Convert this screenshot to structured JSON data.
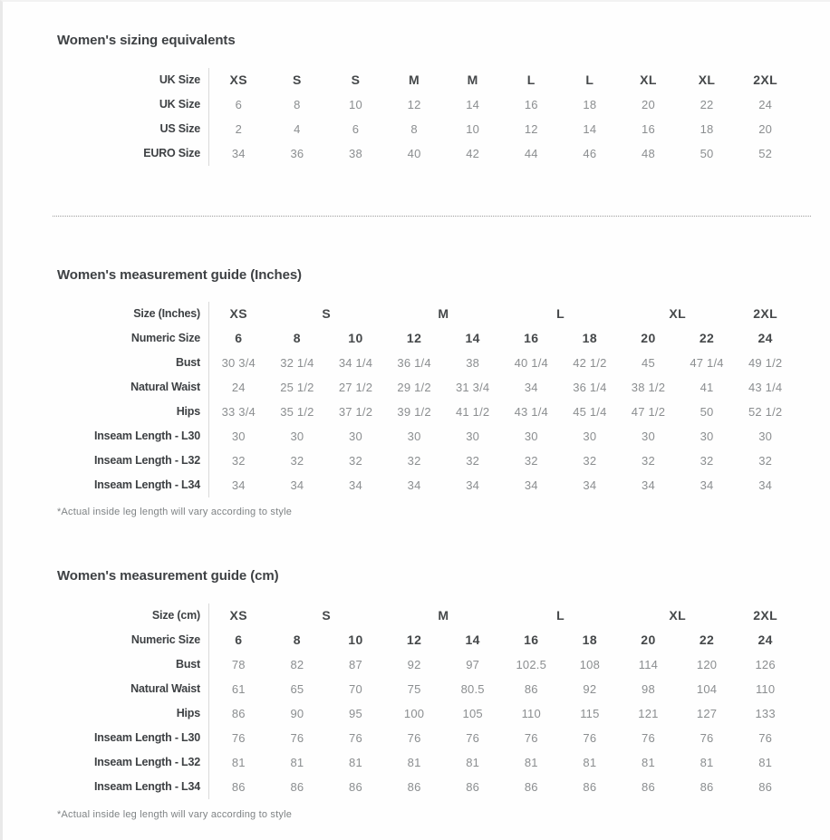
{
  "colors": {
    "label_dark": "#3e4144",
    "value_gray": "#8b8e90",
    "divider_gray": "#d9d9d9",
    "background": "#fefefe"
  },
  "tables": [
    {
      "id": "sizing-equivalents",
      "title": "Women's sizing equivalents",
      "header_row": {
        "label": "UK Size",
        "cells": [
          {
            "text": "XS",
            "span": 1
          },
          {
            "text": "S",
            "span": 1
          },
          {
            "text": "S",
            "span": 1
          },
          {
            "text": "M",
            "span": 1
          },
          {
            "text": "M",
            "span": 1
          },
          {
            "text": "L",
            "span": 1
          },
          {
            "text": "L",
            "span": 1
          },
          {
            "text": "XL",
            "span": 1
          },
          {
            "text": "XL",
            "span": 1
          },
          {
            "text": "2XL",
            "span": 1
          }
        ]
      },
      "rows": [
        {
          "label": "UK Size",
          "bold": false,
          "values": [
            "6",
            "8",
            "10",
            "12",
            "14",
            "16",
            "18",
            "20",
            "22",
            "24"
          ]
        },
        {
          "label": "US Size",
          "bold": false,
          "values": [
            "2",
            "4",
            "6",
            "8",
            "10",
            "12",
            "14",
            "16",
            "18",
            "20"
          ]
        },
        {
          "label": "EURO Size",
          "bold": false,
          "values": [
            "34",
            "36",
            "38",
            "40",
            "42",
            "44",
            "46",
            "48",
            "50",
            "52"
          ]
        }
      ],
      "footnote": ""
    },
    {
      "id": "measurement-guide-inches",
      "title": "Women's measurement guide (Inches)",
      "header_row": {
        "label": "Size (Inches)",
        "cells": [
          {
            "text": "XS",
            "span": 1
          },
          {
            "text": "S",
            "span": 2
          },
          {
            "text": "M",
            "span": 2
          },
          {
            "text": "L",
            "span": 2
          },
          {
            "text": "XL",
            "span": 2
          },
          {
            "text": "2XL",
            "span": 1
          }
        ]
      },
      "rows": [
        {
          "label": "Numeric Size",
          "bold": true,
          "values": [
            "6",
            "8",
            "10",
            "12",
            "14",
            "16",
            "18",
            "20",
            "22",
            "24"
          ]
        },
        {
          "label": "Bust",
          "bold": false,
          "values": [
            "30 3/4",
            "32 1/4",
            "34 1/4",
            "36 1/4",
            "38",
            "40 1/4",
            "42 1/2",
            "45",
            "47 1/4",
            "49 1/2"
          ]
        },
        {
          "label": "Natural Waist",
          "bold": false,
          "values": [
            "24",
            "25 1/2",
            "27 1/2",
            "29 1/2",
            "31 3/4",
            "34",
            "36 1/4",
            "38 1/2",
            "41",
            "43 1/4"
          ]
        },
        {
          "label": "Hips",
          "bold": false,
          "values": [
            "33 3/4",
            "35 1/2",
            "37 1/2",
            "39 1/2",
            "41 1/2",
            "43 1/4",
            "45 1/4",
            "47 1/2",
            "50",
            "52 1/2"
          ]
        },
        {
          "label": "Inseam Length - L30",
          "bold": false,
          "values": [
            "30",
            "30",
            "30",
            "30",
            "30",
            "30",
            "30",
            "30",
            "30",
            "30"
          ]
        },
        {
          "label": "Inseam Length - L32",
          "bold": false,
          "values": [
            "32",
            "32",
            "32",
            "32",
            "32",
            "32",
            "32",
            "32",
            "32",
            "32"
          ]
        },
        {
          "label": "Inseam Length - L34",
          "bold": false,
          "values": [
            "34",
            "34",
            "34",
            "34",
            "34",
            "34",
            "34",
            "34",
            "34",
            "34"
          ]
        }
      ],
      "footnote": "*Actual inside leg length will vary according to style"
    },
    {
      "id": "measurement-guide-cm",
      "title": "Women's measurement guide (cm)",
      "header_row": {
        "label": "Size (cm)",
        "cells": [
          {
            "text": "XS",
            "span": 1
          },
          {
            "text": "S",
            "span": 2
          },
          {
            "text": "M",
            "span": 2
          },
          {
            "text": "L",
            "span": 2
          },
          {
            "text": "XL",
            "span": 2
          },
          {
            "text": "2XL",
            "span": 1
          }
        ]
      },
      "rows": [
        {
          "label": "Numeric Size",
          "bold": true,
          "values": [
            "6",
            "8",
            "10",
            "12",
            "14",
            "16",
            "18",
            "20",
            "22",
            "24"
          ]
        },
        {
          "label": "Bust",
          "bold": false,
          "values": [
            "78",
            "82",
            "87",
            "92",
            "97",
            "102.5",
            "108",
            "114",
            "120",
            "126"
          ]
        },
        {
          "label": "Natural Waist",
          "bold": false,
          "values": [
            "61",
            "65",
            "70",
            "75",
            "80.5",
            "86",
            "92",
            "98",
            "104",
            "110"
          ]
        },
        {
          "label": "Hips",
          "bold": false,
          "values": [
            "86",
            "90",
            "95",
            "100",
            "105",
            "110",
            "115",
            "121",
            "127",
            "133"
          ]
        },
        {
          "label": "Inseam Length - L30",
          "bold": false,
          "values": [
            "76",
            "76",
            "76",
            "76",
            "76",
            "76",
            "76",
            "76",
            "76",
            "76"
          ]
        },
        {
          "label": "Inseam Length - L32",
          "bold": false,
          "values": [
            "81",
            "81",
            "81",
            "81",
            "81",
            "81",
            "81",
            "81",
            "81",
            "81"
          ]
        },
        {
          "label": "Inseam Length - L34",
          "bold": false,
          "values": [
            "86",
            "86",
            "86",
            "86",
            "86",
            "86",
            "86",
            "86",
            "86",
            "86"
          ]
        }
      ],
      "footnote": "*Actual inside leg length will vary according to style"
    }
  ]
}
